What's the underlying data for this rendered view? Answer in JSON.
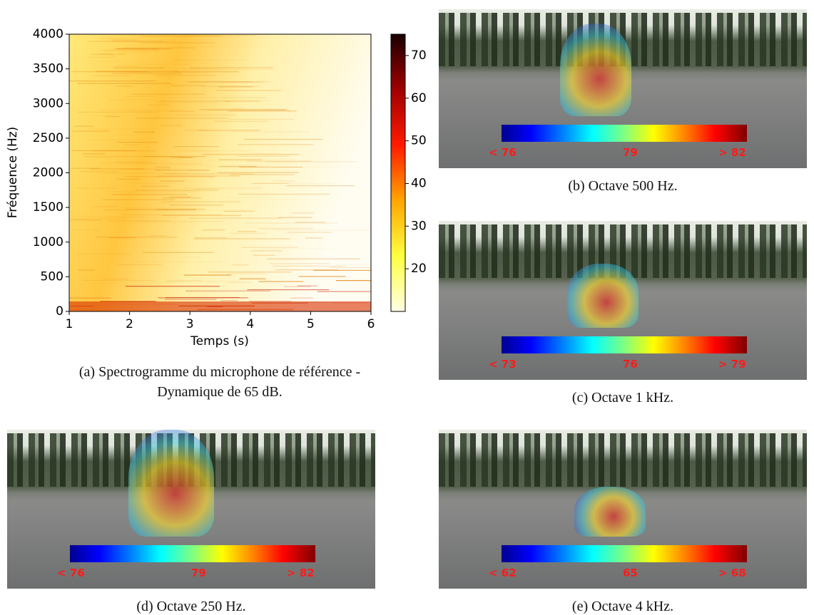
{
  "chart_data": {
    "type": "heatmap",
    "xlabel": "Temps (s)",
    "ylabel": "Fréquence (Hz)",
    "xlim": [
      1,
      6
    ],
    "xticks": [
      1,
      2,
      3,
      4,
      5,
      6
    ],
    "ylim": [
      0,
      4000
    ],
    "yticks": [
      0,
      500,
      1000,
      1500,
      2000,
      2500,
      3000,
      3500,
      4000
    ],
    "colorbar": {
      "lim": [
        10,
        75
      ],
      "ticks": [
        20,
        30,
        40,
        50,
        60,
        70
      ]
    },
    "caption": "(a) Spectrogramme du microphone de référence - Dynamique de 65 dB."
  },
  "panels": [
    {
      "caption": "(b) Octave 500 Hz.",
      "scale_labels": [
        "< 76",
        "79",
        "> 82"
      ]
    },
    {
      "caption": "(c) Octave 1 kHz.",
      "scale_labels": [
        "< 73",
        "76",
        "> 79"
      ]
    },
    {
      "caption": "(d) Octave 250 Hz.",
      "scale_labels": [
        "< 76",
        "79",
        "> 82"
      ]
    },
    {
      "caption": "(e) Octave 4 kHz.",
      "scale_labels": [
        "< 62",
        "65",
        "> 68"
      ]
    }
  ]
}
